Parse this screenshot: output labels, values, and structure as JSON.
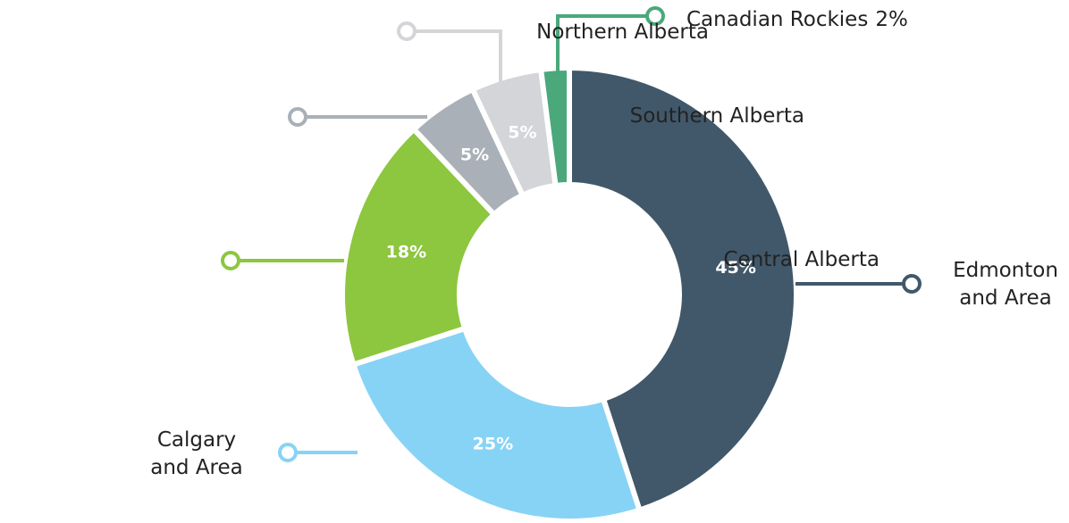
{
  "chart_data": {
    "type": "donut",
    "categories": [
      "Edmonton\nand Area",
      "Calgary\nand Area",
      "Central Alberta",
      "Southern Alberta",
      "Northern Alberta",
      "Canadian Rockies"
    ],
    "values": [
      45,
      25,
      18,
      5,
      5,
      2
    ],
    "value_labels": [
      "45%",
      "25%",
      "18%",
      "5%",
      "5%",
      "2%"
    ],
    "colors": [
      "#41586a",
      "#87d3f5",
      "#8dc63f",
      "#a9b0b7",
      "#d3d5d8",
      "#4aa87a"
    ]
  }
}
